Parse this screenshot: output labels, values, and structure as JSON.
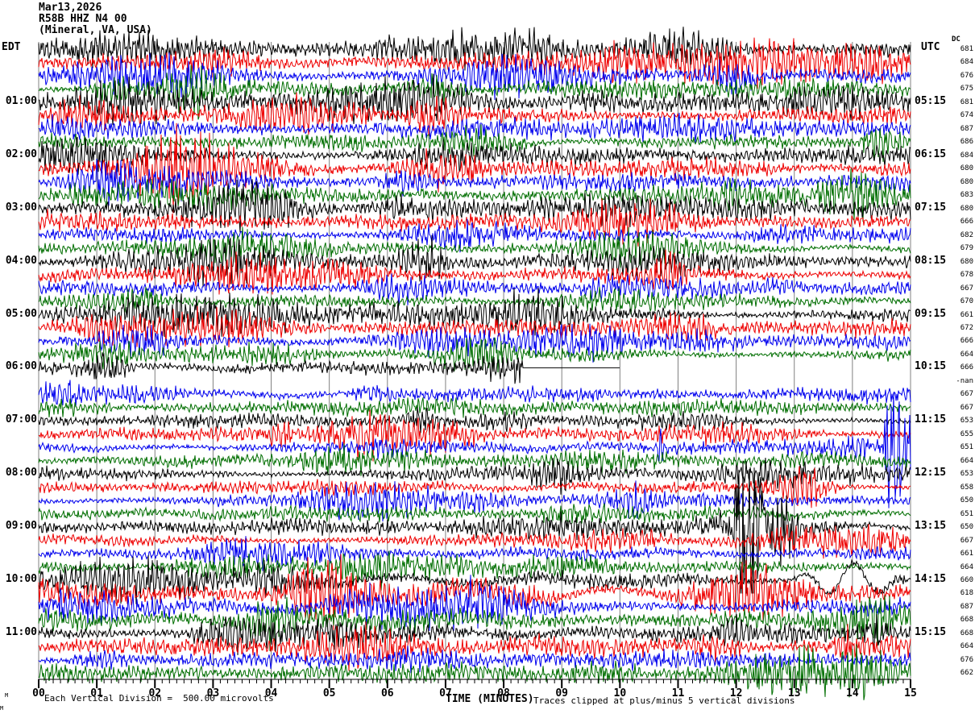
{
  "header": {
    "date": "Mar13,2026",
    "station": "R58B HHZ N4 00",
    "location": "(Mineral, VA, USA)"
  },
  "axes": {
    "left_header": "EDT",
    "right_header": "UTC",
    "dc_header": "DC",
    "xlabel": "TIME (MINUTES)"
  },
  "footer": {
    "division_note": "Each Vertical Division =  500.00 microvolts",
    "clip_note": "Traces clipped at plus/minus 5 vertical divisions",
    "watermark": "M"
  },
  "colors": {
    "trace_cycle": [
      "#000000",
      "#ee0000",
      "#0000ee",
      "#006e00"
    ],
    "grid": "#808080",
    "axis": "#000000"
  },
  "chart_data": {
    "type": "line",
    "subtype": "helicorder-seismogram",
    "xlabel": "TIME (MINUTES)",
    "x_range_minutes": [
      0,
      15
    ],
    "x_tick_labels": [
      "00",
      "01",
      "02",
      "03",
      "04",
      "05",
      "06",
      "07",
      "08",
      "09",
      "10",
      "11",
      "12",
      "13",
      "14",
      "15"
    ],
    "minor_ticks_per_minute": 8,
    "minutes_per_row": 15,
    "clip_divisions": 5,
    "division_microvolts": "500.00",
    "grid": true,
    "rows": [
      {
        "edt": "",
        "utc": "",
        "dc": "681",
        "c": 0,
        "amp": 8,
        "slow": 2,
        "ev": []
      },
      {
        "edt": "",
        "utc": "",
        "dc": "684",
        "c": 1,
        "amp": 8,
        "slow": 2,
        "ev": []
      },
      {
        "edt": "",
        "utc": "",
        "dc": "676",
        "c": 2,
        "amp": 7,
        "slow": 2,
        "ev": []
      },
      {
        "edt": "",
        "utc": "",
        "dc": "675",
        "c": 3,
        "amp": 7,
        "slow": 2,
        "ev": []
      },
      {
        "edt": "01:00",
        "utc": "05:15",
        "dc": "681",
        "c": 0,
        "amp": 8,
        "slow": 2,
        "ev": []
      },
      {
        "edt": "",
        "utc": "",
        "dc": "674",
        "c": 1,
        "amp": 8,
        "slow": 2,
        "ev": []
      },
      {
        "edt": "",
        "utc": "",
        "dc": "687",
        "c": 2,
        "amp": 7,
        "slow": 2,
        "ev": []
      },
      {
        "edt": "",
        "utc": "",
        "dc": "686",
        "c": 3,
        "amp": 7,
        "slow": 2,
        "ev": []
      },
      {
        "edt": "02:00",
        "utc": "06:15",
        "dc": "684",
        "c": 0,
        "amp": 8,
        "slow": 2,
        "ev": []
      },
      {
        "edt": "",
        "utc": "",
        "dc": "680",
        "c": 1,
        "amp": 8,
        "slow": 2,
        "ev": []
      },
      {
        "edt": "",
        "utc": "",
        "dc": "680",
        "c": 2,
        "amp": 7,
        "slow": 2,
        "ev": []
      },
      {
        "edt": "",
        "utc": "",
        "dc": "683",
        "c": 3,
        "amp": 7,
        "slow": 2,
        "ev": []
      },
      {
        "edt": "03:00",
        "utc": "07:15",
        "dc": "680",
        "c": 0,
        "amp": 7,
        "slow": 2,
        "ev": []
      },
      {
        "edt": "",
        "utc": "",
        "dc": "666",
        "c": 1,
        "amp": 7,
        "slow": 2,
        "ev": []
      },
      {
        "edt": "",
        "utc": "",
        "dc": "682",
        "c": 2,
        "amp": 6.5,
        "slow": 2,
        "ev": []
      },
      {
        "edt": "",
        "utc": "",
        "dc": "679",
        "c": 3,
        "amp": 6.5,
        "slow": 2,
        "ev": []
      },
      {
        "edt": "04:00",
        "utc": "08:15",
        "dc": "680",
        "c": 0,
        "amp": 7,
        "slow": 2,
        "ev": []
      },
      {
        "edt": "",
        "utc": "",
        "dc": "678",
        "c": 1,
        "amp": 7,
        "slow": 2,
        "ev": []
      },
      {
        "edt": "",
        "utc": "",
        "dc": "667",
        "c": 2,
        "amp": 6,
        "slow": 2,
        "ev": []
      },
      {
        "edt": "",
        "utc": "",
        "dc": "670",
        "c": 3,
        "amp": 6,
        "slow": 2,
        "ev": []
      },
      {
        "edt": "05:00",
        "utc": "09:15",
        "dc": "661",
        "c": 0,
        "amp": 7,
        "slow": 2,
        "ev": [
          {
            "t": "burst",
            "m0": 10.4,
            "m1": 11.6,
            "g": 1.8
          }
        ]
      },
      {
        "edt": "",
        "utc": "",
        "dc": "672",
        "c": 1,
        "amp": 6.5,
        "slow": 2,
        "ev": []
      },
      {
        "edt": "",
        "utc": "",
        "dc": "666",
        "c": 2,
        "amp": 6,
        "slow": 2,
        "ev": []
      },
      {
        "edt": "",
        "utc": "",
        "dc": "664",
        "c": 3,
        "amp": 6,
        "slow": 2,
        "ev": []
      },
      {
        "edt": "06:00",
        "utc": "10:15",
        "dc": "666",
        "c": 0,
        "amp": 6,
        "slow": 2,
        "ev": [
          {
            "t": "flat",
            "m0": 8.32,
            "m1": 10.0
          },
          {
            "t": "end",
            "m": 10.0
          }
        ]
      },
      {
        "edt": "",
        "utc": "",
        "dc": "-nan",
        "c": 1,
        "amp": 0,
        "slow": 0,
        "ev": [
          {
            "t": "nodata"
          }
        ]
      },
      {
        "edt": "",
        "utc": "",
        "dc": "667",
        "c": 2,
        "amp": 5.5,
        "slow": 2,
        "ev": []
      },
      {
        "edt": "",
        "utc": "",
        "dc": "667",
        "c": 3,
        "amp": 5.5,
        "slow": 2,
        "ev": []
      },
      {
        "edt": "07:00",
        "utc": "11:15",
        "dc": "653",
        "c": 0,
        "amp": 5.5,
        "slow": 2,
        "ev": []
      },
      {
        "edt": "",
        "utc": "",
        "dc": "655",
        "c": 1,
        "amp": 5.5,
        "slow": 2,
        "ev": [
          {
            "t": "burst",
            "m0": 3.9,
            "m1": 4.35,
            "g": 2.2
          }
        ]
      },
      {
        "edt": "",
        "utc": "",
        "dc": "651",
        "c": 2,
        "amp": 5.5,
        "slow": 2,
        "ev": [
          {
            "t": "spike",
            "m": 10.7,
            "a": 26
          },
          {
            "t": "clip",
            "m0": 14.5,
            "m1": 15,
            "a": 55
          }
        ]
      },
      {
        "edt": "",
        "utc": "",
        "dc": "664",
        "c": 3,
        "amp": 5.5,
        "slow": 2,
        "ev": []
      },
      {
        "edt": "08:00",
        "utc": "12:15",
        "dc": "653",
        "c": 0,
        "amp": 6,
        "slow": 2,
        "ev": []
      },
      {
        "edt": "",
        "utc": "",
        "dc": "658",
        "c": 1,
        "amp": 5.5,
        "slow": 2,
        "ev": []
      },
      {
        "edt": "",
        "utc": "",
        "dc": "650",
        "c": 2,
        "amp": 5.5,
        "slow": 2,
        "ev": []
      },
      {
        "edt": "",
        "utc": "",
        "dc": "651",
        "c": 3,
        "amp": 5.5,
        "slow": 2,
        "ev": []
      },
      {
        "edt": "09:00",
        "utc": "13:15",
        "dc": "650",
        "c": 0,
        "amp": 6,
        "slow": 2,
        "ev": [
          {
            "t": "clip",
            "m0": 11.92,
            "m1": 12.52,
            "a": 82
          },
          {
            "t": "burst",
            "m0": 12.52,
            "m1": 13.1,
            "g": 2.6
          }
        ]
      },
      {
        "edt": "",
        "utc": "",
        "dc": "667",
        "c": 1,
        "amp": 5.5,
        "slow": 2,
        "ev": []
      },
      {
        "edt": "",
        "utc": "",
        "dc": "661",
        "c": 2,
        "amp": 5.5,
        "slow": 2,
        "ev": []
      },
      {
        "edt": "",
        "utc": "",
        "dc": "664",
        "c": 3,
        "amp": 5.5,
        "slow": 2,
        "ev": [
          {
            "t": "spike",
            "m": 5.25,
            "a": 26
          },
          {
            "t": "burst",
            "m0": 5.25,
            "m1": 6.1,
            "g": 2.0
          }
        ]
      },
      {
        "edt": "10:00",
        "utc": "14:15",
        "dc": "660",
        "c": 0,
        "amp": 8,
        "slow": 4,
        "ev": [
          {
            "t": "slowwave",
            "m0": 12.9,
            "m1": 15,
            "a": 20
          }
        ]
      },
      {
        "edt": "",
        "utc": "",
        "dc": "618",
        "c": 1,
        "amp": 10,
        "slow": 7,
        "ev": []
      },
      {
        "edt": "",
        "utc": "",
        "dc": "687",
        "c": 2,
        "amp": 8,
        "slow": 4,
        "ev": []
      },
      {
        "edt": "",
        "utc": "",
        "dc": "668",
        "c": 3,
        "amp": 8,
        "slow": 4,
        "ev": []
      },
      {
        "edt": "11:00",
        "utc": "15:15",
        "dc": "668",
        "c": 0,
        "amp": 7,
        "slow": 2,
        "ev": [
          {
            "t": "burst",
            "m0": 11.6,
            "m1": 12.3,
            "g": 1.6
          },
          {
            "t": "hfburst",
            "m0": 14.15,
            "m1": 15,
            "a": 18
          }
        ]
      },
      {
        "edt": "",
        "utc": "",
        "dc": "664",
        "c": 1,
        "amp": 7.5,
        "slow": 2,
        "ev": [
          {
            "t": "burst",
            "m0": 13.6,
            "m1": 14.1,
            "g": 2.4
          }
        ]
      },
      {
        "edt": "",
        "utc": "",
        "dc": "676",
        "c": 2,
        "amp": 7,
        "slow": 2,
        "ev": []
      },
      {
        "edt": "",
        "utc": "",
        "dc": "662",
        "c": 3,
        "amp": 7,
        "slow": 2,
        "ev": []
      }
    ]
  }
}
